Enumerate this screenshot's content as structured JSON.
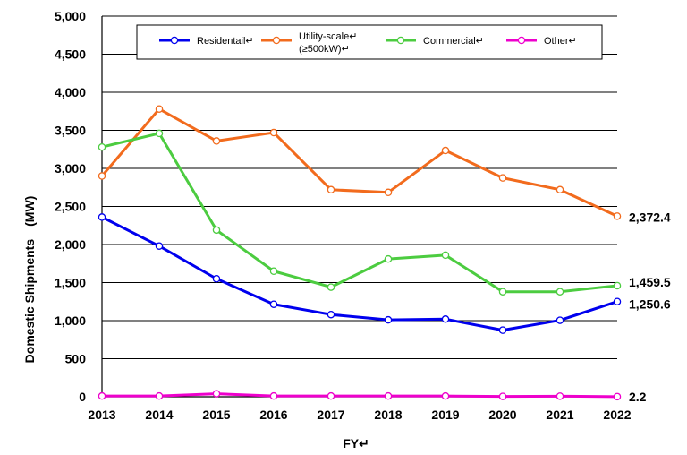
{
  "chart_data": {
    "type": "line",
    "xlabel": "FY↵",
    "ylabel": "Domestic Shipments　(MW)",
    "ylim": [
      0,
      5000
    ],
    "yticks": [
      "0",
      "500",
      "1,000",
      "1,500",
      "2,000",
      "2,500",
      "3,000",
      "3,500",
      "4,000",
      "4,500",
      "5,000"
    ],
    "ytick_values": [
      0,
      500,
      1000,
      1500,
      2000,
      2500,
      3000,
      3500,
      4000,
      4500,
      5000
    ],
    "categories": [
      "2013",
      "2014",
      "2015",
      "2016",
      "2017",
      "2018",
      "2019",
      "2020",
      "2021",
      "2022"
    ],
    "grid": "horizontal",
    "legend_position": "top",
    "series": [
      {
        "name": "Residentail↵",
        "color": "#0000ee",
        "values": [
          2360,
          1980,
          1550,
          1215,
          1080,
          1010,
          1020,
          875,
          1005,
          1250.6
        ],
        "end_label": "1,250.6"
      },
      {
        "name": "Utility-scale↵",
        "name_line2": "(≥500kW)↵",
        "color": "#f26b1d",
        "values": [
          2900,
          3780,
          3360,
          3470,
          2720,
          2685,
          3235,
          2875,
          2720,
          2372.4
        ],
        "end_label": "2,372.4"
      },
      {
        "name": "Commercial↵",
        "color": "#4ccc40",
        "values": [
          3280,
          3460,
          2190,
          1650,
          1440,
          1810,
          1860,
          1380,
          1380,
          1459.5
        ],
        "end_label": "1,459.5"
      },
      {
        "name": "Other↵",
        "color": "#ee00cc",
        "values": [
          10,
          10,
          40,
          10,
          10,
          10,
          10,
          5,
          8,
          2.2
        ],
        "end_label": "2.2"
      }
    ]
  }
}
